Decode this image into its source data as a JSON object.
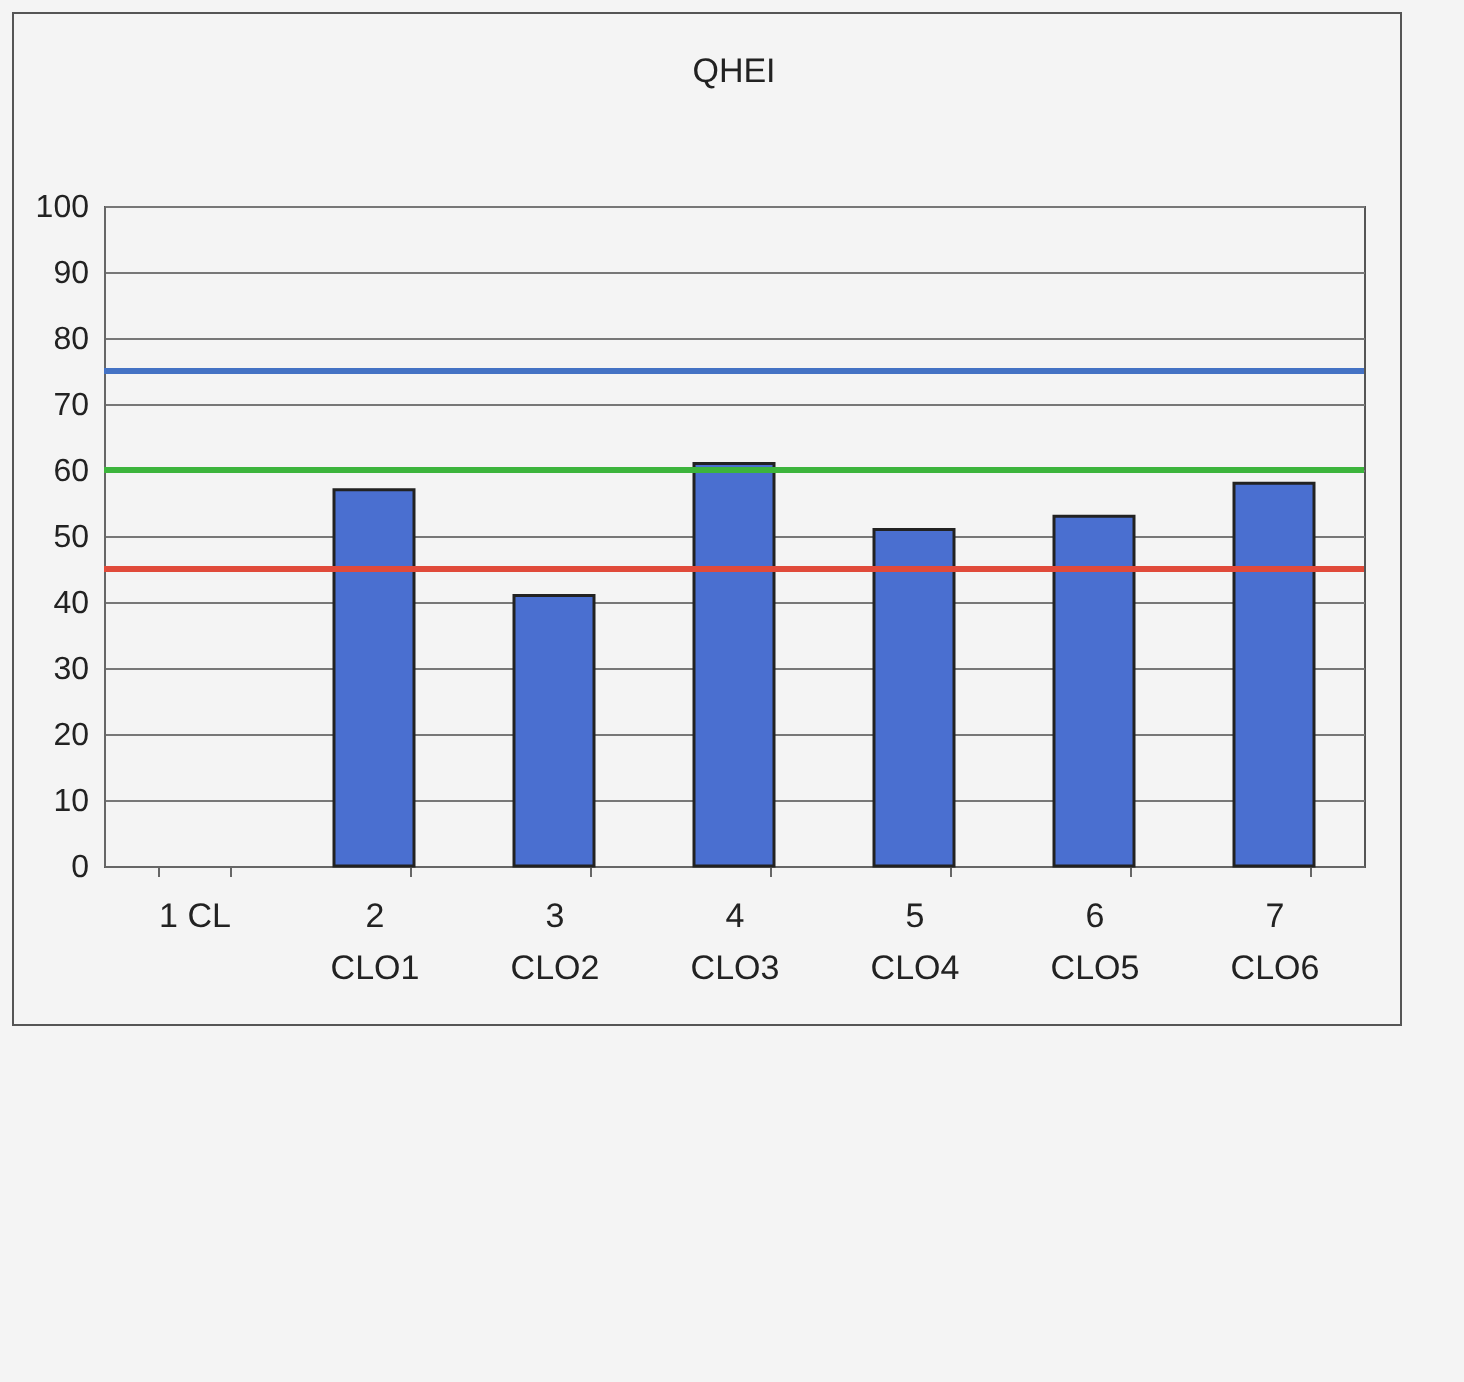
{
  "chart_data": {
    "type": "bar",
    "title": "QHEI",
    "categories": [
      "1 CL",
      "2\nCLO1",
      "3\nCLO2",
      "4\nCLO3",
      "5\nCLO4",
      "6\nCLO5",
      "7\nCLO6"
    ],
    "values": [
      null,
      57,
      41,
      61,
      51,
      53,
      58
    ],
    "color": "#4a6fd0",
    "ylim": [
      0,
      100
    ],
    "yticks": [
      0,
      10,
      20,
      30,
      40,
      50,
      60,
      70,
      80,
      90,
      100
    ],
    "grid": "y",
    "ref_lines": [
      {
        "axis": "y",
        "value": 75,
        "color": "#4472c4"
      },
      {
        "axis": "y",
        "value": 60,
        "color": "#3cb43c"
      },
      {
        "axis": "y",
        "value": 45,
        "color": "#e04a3a"
      }
    ]
  }
}
